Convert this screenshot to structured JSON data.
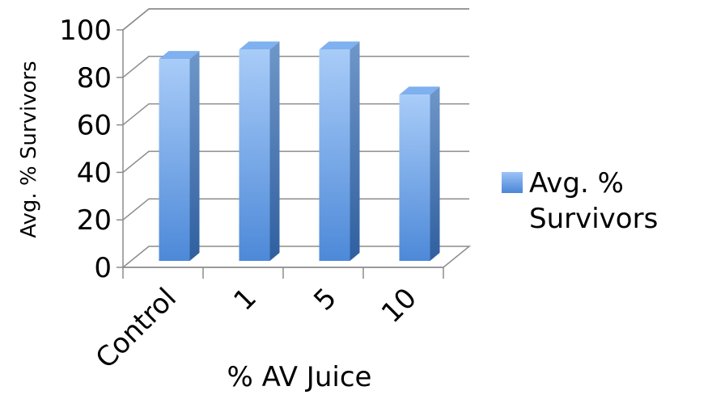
{
  "chart_data": {
    "type": "bar",
    "title": "",
    "xlabel": "% AV Juice",
    "ylabel": "Avg. % Survivors",
    "categories": [
      "Control",
      "1",
      "5",
      "10"
    ],
    "series": [
      {
        "name": "Avg. % Survivors",
        "values": [
          85,
          89,
          89,
          70
        ]
      }
    ],
    "ylim": [
      0,
      100
    ],
    "yticks": [
      "0",
      "20",
      "40",
      "60",
      "80",
      "100"
    ],
    "grid": true,
    "legend_position": "right",
    "bar_color": "#5b95de",
    "three_d": true
  }
}
